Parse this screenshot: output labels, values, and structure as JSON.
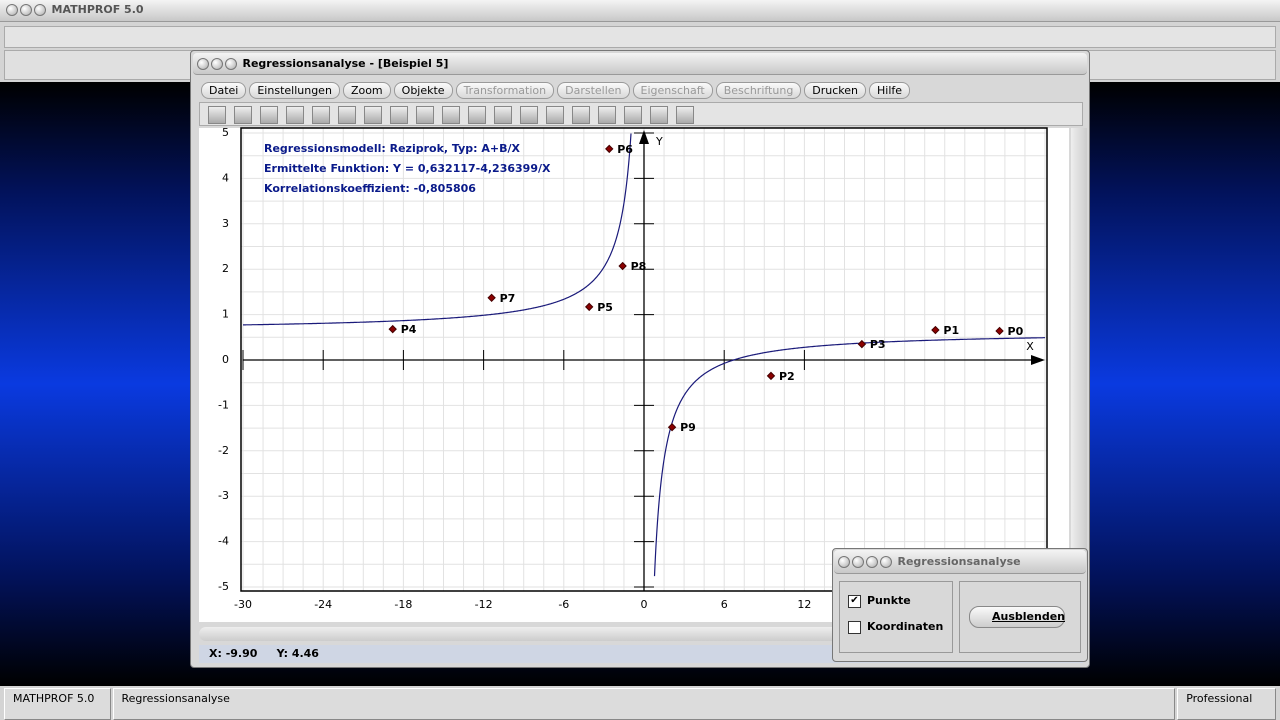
{
  "app": {
    "title": "MATHPROF 5.0"
  },
  "window": {
    "title": "Regressionsanalyse - [Beispiel 5]",
    "menu": [
      {
        "label": "Datei",
        "enabled": true
      },
      {
        "label": "Einstellungen",
        "enabled": true
      },
      {
        "label": "Zoom",
        "enabled": true
      },
      {
        "label": "Objekte",
        "enabled": true
      },
      {
        "label": "Transformation",
        "enabled": false
      },
      {
        "label": "Darstellen",
        "enabled": false
      },
      {
        "label": "Eigenschaft",
        "enabled": false
      },
      {
        "label": "Beschriftung",
        "enabled": false
      },
      {
        "label": "Drucken",
        "enabled": true
      },
      {
        "label": "Hilfe",
        "enabled": true
      }
    ],
    "status_x": "X: -9.90",
    "status_y": "Y: 4.46"
  },
  "chart_data": {
    "type": "scatter",
    "annotations": [
      "Regressionsmodell: Reziprok, Typ: A+B/X",
      "Ermittelte Funktion: Y = 0,632117-4,236399/X",
      "Korrelationskoeffizient: -0,805806"
    ],
    "model": {
      "a": 0.632117,
      "b": -4.236399,
      "color": "#1a1a7a"
    },
    "x": [
      26.6,
      21.8,
      9.5,
      16.3,
      -18.8,
      -4.1,
      -2.6,
      -11.4,
      -1.6,
      2.1
    ],
    "values": [
      0.64,
      0.66,
      -0.35,
      0.35,
      0.68,
      1.17,
      4.65,
      1.37,
      2.07,
      -1.48
    ],
    "point_labels": [
      "P0",
      "P1",
      "P2",
      "P3",
      "P4",
      "P5",
      "P6",
      "P7",
      "P8",
      "P9"
    ],
    "color": "#8b0000",
    "x_axis_label": "X",
    "y_axis_label": "Y",
    "xlim": [
      -30,
      30
    ],
    "xticks": [
      -30,
      -24,
      -18,
      -12,
      -6,
      0,
      6,
      12
    ],
    "ylim": [
      -5,
      5
    ],
    "yticks": [
      -5,
      -4,
      -3,
      -2,
      -1,
      0,
      1,
      2,
      3,
      4,
      5
    ],
    "grid": true
  },
  "dialog": {
    "title": "Regressionsanalyse",
    "options": [
      {
        "label": "Punkte",
        "checked": true
      },
      {
        "label": "Koordinaten",
        "checked": false
      }
    ],
    "button": "Ausblenden"
  },
  "statusbar": [
    "MATHPROF 5.0",
    "Regressionsanalyse",
    "Professional"
  ]
}
